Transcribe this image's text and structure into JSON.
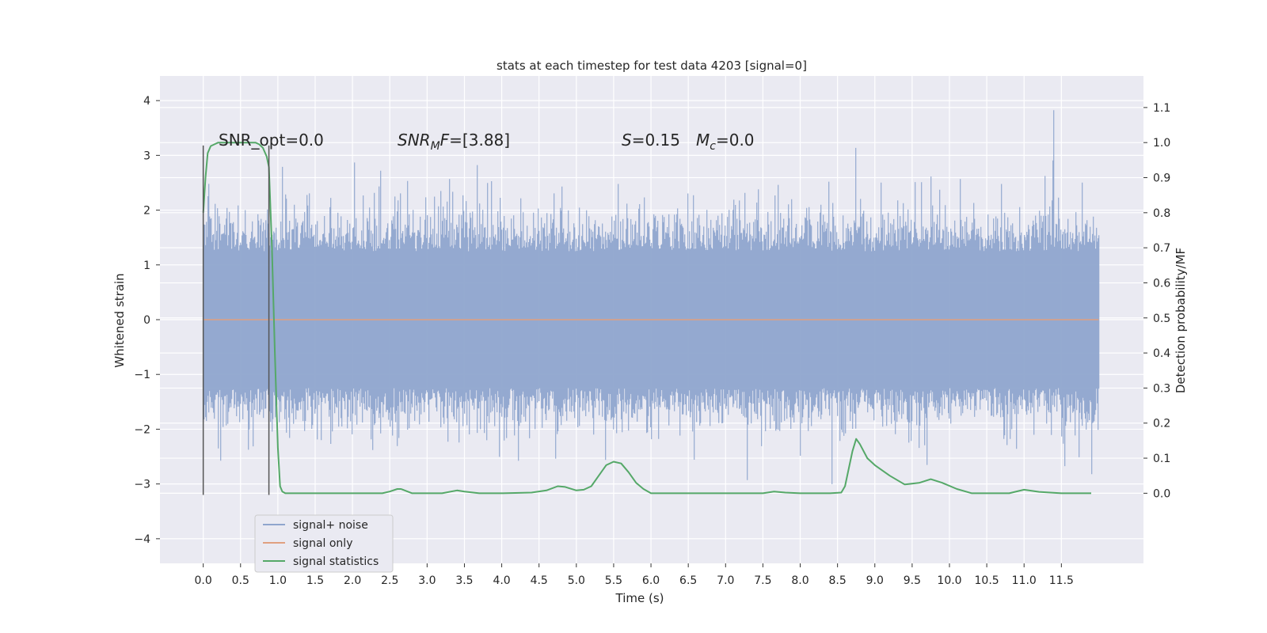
{
  "chart_data": {
    "type": "line",
    "title": "stats at each timestep for test data 4203 [signal=0]",
    "xlabel": "Time (s)",
    "ylabel": "Whitened strain",
    "y2label": "Detection probability/MF",
    "xlim": [
      -0.58,
      12.6
    ],
    "ylim": [
      -4.45,
      4.45
    ],
    "y2lim": [
      -0.2,
      1.19
    ],
    "x_ticks": [
      "0.0",
      "0.5",
      "1.0",
      "1.5",
      "2.0",
      "2.5",
      "3.0",
      "3.5",
      "4.0",
      "4.5",
      "5.0",
      "5.5",
      "6.0",
      "6.5",
      "7.0",
      "7.5",
      "8.0",
      "8.5",
      "9.0",
      "9.5",
      "10.0",
      "10.5",
      "11.0",
      "11.5"
    ],
    "y_ticks": [
      "4",
      "3",
      "2",
      "1",
      "0",
      "−1",
      "−2",
      "−3",
      "−4"
    ],
    "y2_ticks": [
      "1.1",
      "1.0",
      "0.9",
      "0.8",
      "0.7",
      "0.6",
      "0.5",
      "0.4",
      "0.3",
      "0.2",
      "0.1",
      "0.0"
    ],
    "grid": true,
    "legend_position": "lower-left",
    "annotations": {
      "snr_opt": "SNR_opt=0.0",
      "snr_mf": "=[3.88]",
      "s_value": "=0.15",
      "mc_value": "=0.0"
    },
    "vlines_x": [
      0.0,
      0.88
    ],
    "series": [
      {
        "name": "signal+ noise",
        "color": "#8fa5cd",
        "type": "noise",
        "x_range": [
          0.0,
          12.0
        ],
        "std": 1.0
      },
      {
        "name": "signal only",
        "color": "#e0a080",
        "type": "flat",
        "x_range": [
          0.0,
          12.0
        ],
        "value": 0.0
      },
      {
        "name": "signal statistics",
        "color": "#55a868",
        "axis": "y2",
        "x": [
          0.0,
          0.03,
          0.06,
          0.1,
          0.15,
          0.2,
          0.3,
          0.4,
          0.5,
          0.6,
          0.7,
          0.75,
          0.8,
          0.85,
          0.88,
          0.92,
          0.96,
          1.0,
          1.03,
          1.06,
          1.1,
          1.15,
          1.2,
          1.5,
          2.0,
          2.4,
          2.5,
          2.6,
          2.65,
          2.7,
          2.8,
          3.0,
          3.2,
          3.4,
          3.5,
          3.7,
          4.0,
          4.4,
          4.6,
          4.75,
          4.85,
          5.0,
          5.1,
          5.2,
          5.3,
          5.4,
          5.5,
          5.6,
          5.7,
          5.8,
          5.9,
          6.0,
          6.2,
          6.5,
          7.0,
          7.5,
          7.65,
          7.8,
          8.0,
          8.4,
          8.55,
          8.6,
          8.7,
          8.75,
          8.8,
          8.9,
          9.0,
          9.2,
          9.4,
          9.6,
          9.75,
          9.9,
          10.1,
          10.3,
          10.5,
          10.8,
          11.0,
          11.2,
          11.5,
          11.8,
          11.9
        ],
        "y": [
          0.8,
          0.9,
          0.97,
          0.99,
          0.995,
          1.0,
          1.0,
          1.0,
          1.0,
          1.0,
          1.0,
          0.995,
          0.985,
          0.96,
          0.93,
          0.7,
          0.4,
          0.13,
          0.02,
          0.005,
          0.0,
          0.0,
          0.0,
          0.0,
          0.0,
          0.0,
          0.005,
          0.012,
          0.012,
          0.008,
          0.0,
          0.0,
          0.0,
          0.008,
          0.005,
          0.0,
          0.0,
          0.002,
          0.008,
          0.02,
          0.018,
          0.008,
          0.01,
          0.02,
          0.05,
          0.08,
          0.09,
          0.085,
          0.06,
          0.03,
          0.012,
          0.0,
          0.0,
          0.0,
          0.0,
          0.0,
          0.005,
          0.002,
          0.0,
          0.0,
          0.002,
          0.02,
          0.12,
          0.155,
          0.14,
          0.1,
          0.08,
          0.05,
          0.025,
          0.03,
          0.04,
          0.03,
          0.012,
          0.0,
          0.0,
          0.0,
          0.01,
          0.004,
          0.0,
          0.0,
          0.0
        ]
      }
    ]
  }
}
